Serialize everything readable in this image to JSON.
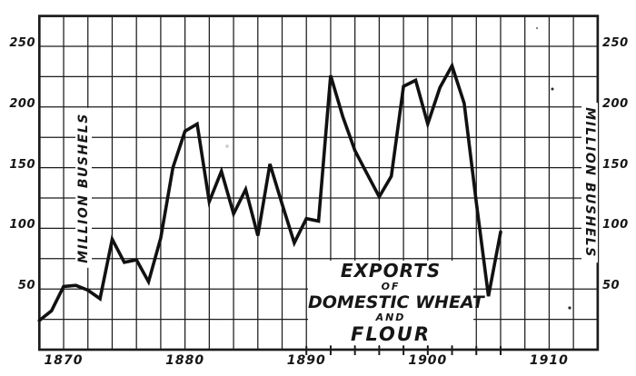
{
  "figure": {
    "background": "#ffffff",
    "ink_color": "#161616",
    "grid_color": "#1c1c1c",
    "line_color": "#111111"
  },
  "chart_data": {
    "type": "line",
    "title": "EXPORTS OF DOMESTIC WHEAT AND FLOUR",
    "title_lines": [
      "EXPORTS",
      "OF",
      "DOMESTIC WHEAT",
      "AND",
      "FLOUR"
    ],
    "y_axis_label": "MILLION BUSHELS",
    "series_name": "Exports of domestic wheat and flour (million bushels)",
    "years": [
      1868,
      1869,
      1870,
      1871,
      1872,
      1873,
      1874,
      1875,
      1876,
      1877,
      1878,
      1879,
      1880,
      1881,
      1882,
      1883,
      1884,
      1885,
      1886,
      1887,
      1888,
      1889,
      1890,
      1891,
      1892,
      1893,
      1894,
      1895,
      1896,
      1897,
      1898,
      1899,
      1900,
      1901,
      1902,
      1903,
      1904,
      1905,
      1906
    ],
    "values": [
      24,
      32,
      52,
      53,
      49,
      42,
      91,
      72,
      74,
      56,
      92,
      150,
      180,
      186,
      122,
      147,
      112,
      132,
      94,
      153,
      120,
      88,
      108,
      106,
      226,
      192,
      164,
      145,
      126,
      143,
      217,
      222,
      186,
      216,
      234,
      203,
      121,
      44,
      97
    ],
    "x_ticks": [
      1870,
      1880,
      1890,
      1900,
      1910
    ],
    "y_ticks": [
      50,
      100,
      150,
      200,
      250
    ],
    "xlim": [
      1868,
      1914
    ],
    "ylim": [
      0,
      275
    ],
    "x_grid_step_years": 2,
    "y_grid_step": 25,
    "bottom_tick_years": [
      1890,
      1892,
      1894,
      1896,
      1898,
      1900,
      1902,
      1904,
      1906
    ],
    "grid": "on",
    "legend_position": "none",
    "y_axis_label_sides": "both"
  }
}
